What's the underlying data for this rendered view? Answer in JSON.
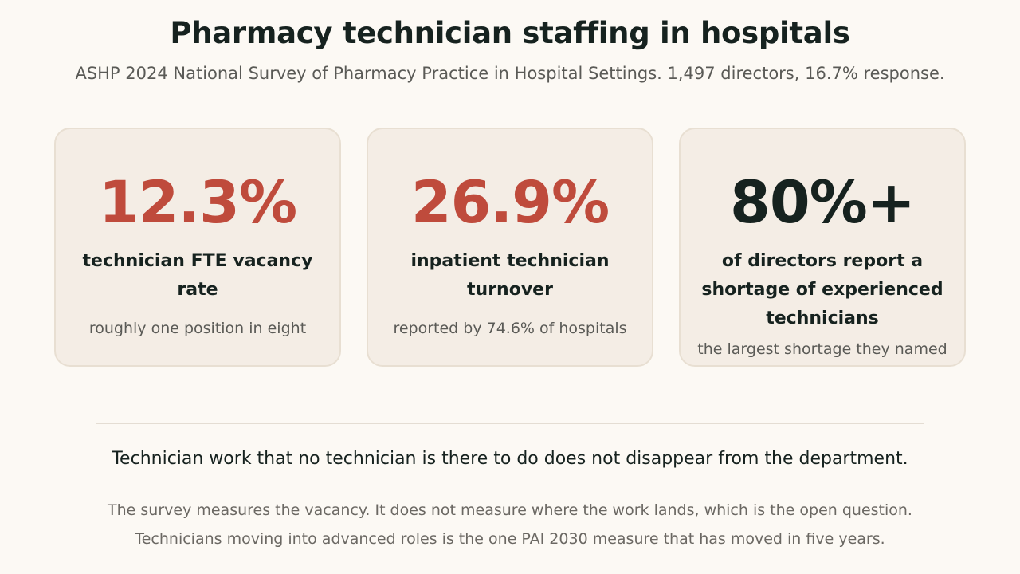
{
  "header": {
    "title": "Pharmacy technician staffing in hospitals",
    "subtitle": "ASHP 2024 National Survey of Pharmacy Practice in Hospital Settings. 1,497 directors, 16.7% response."
  },
  "cards": [
    {
      "value": "12.3%",
      "label": "technician FTE vacancy rate",
      "note": "roughly one position in eight"
    },
    {
      "value": "26.9%",
      "label": "inpatient technician turnover",
      "note": "reported by 74.6% of hospitals"
    },
    {
      "value": "80%+",
      "label": "of directors report a shortage of experienced technicians",
      "note": "the largest shortage they named"
    }
  ],
  "conclusion": {
    "headline": "Technician work that no technician is there to do does not disappear from the department.",
    "lines": [
      "The survey measures the vacancy. It does not measure where the work lands, which is the open question.",
      "Technicians moving into advanced roles is the one PAI 2030 measure that has moved in five years."
    ]
  },
  "colors": {
    "background": "#fcf9f4",
    "card_background": "#f4ede5",
    "accent": "#bf4b3c",
    "dark": "#16221f"
  }
}
